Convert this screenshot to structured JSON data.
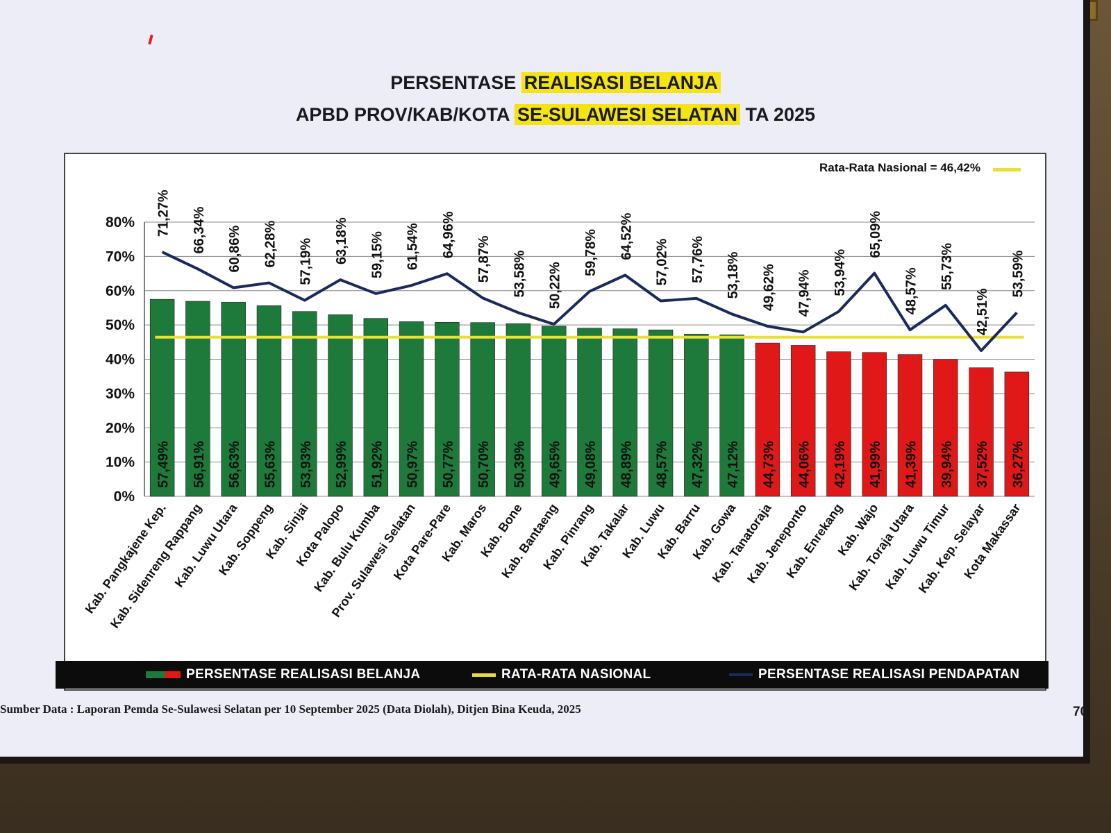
{
  "title": {
    "line1_plain": "PERSENTASE",
    "line1_highlight": "REALISASI BELANJA",
    "line2_plain": "APBD PROV/KAB/KOTA",
    "line2_highlight": "SE-SULAWESI SELATAN",
    "line2_tail": "TA 2025"
  },
  "average_label": "Rata-Rata Nasional = 46,42%",
  "legend": {
    "belanja": "PERSENTASE REALISASI BELANJA",
    "nasional": "RATA-RATA NASIONAL",
    "pendapatan": "PERSENTASE REALISASI PENDAPATAN"
  },
  "source": "Sumber Data : Laporan Pemda Se-Sulawesi Selatan per 10 September 2025 (Data Diolah), Ditjen Bina Keuda, 2025",
  "page_number": "70",
  "colors": {
    "bar_above": "#1e7a3a",
    "bar_below": "#e01818",
    "national_line": "#e8e036",
    "pendapatan_line": "#1a2a5c"
  },
  "chart_data": {
    "type": "bar",
    "categories": [
      "Kab. Pangkajene Kep.",
      "Kab. Sidenreng Rappang",
      "Kab. Luwu Utara",
      "Kab. Soppeng",
      "Kab. Sinjai",
      "Kota Palopo",
      "Kab. Bulu Kumba",
      "Prov. Sulawesi Selatan",
      "Kota Pare-Pare",
      "Kab. Maros",
      "Kab. Bone",
      "Kab. Bantaeng",
      "Kab. Pinrang",
      "Kab. Takalar",
      "Kab. Luwu",
      "Kab. Barru",
      "Kab. Gowa",
      "Kab. Tanatoraja",
      "Kab. Jeneponto",
      "Kab. Enrekang",
      "Kab. Wajo",
      "Kab. Toraja Utara",
      "Kab. Luwu Timur",
      "Kab. Kep. Selayar",
      "Kota Makassar"
    ],
    "series": [
      {
        "name": "PERSENTASE REALISASI BELANJA",
        "type": "bar",
        "values": [
          57.49,
          56.91,
          56.63,
          55.63,
          53.93,
          52.99,
          51.92,
          50.97,
          50.77,
          50.7,
          50.39,
          49.65,
          49.08,
          48.89,
          48.57,
          47.32,
          47.12,
          44.73,
          44.06,
          42.19,
          41.99,
          41.39,
          39.94,
          37.52,
          36.27
        ],
        "labels": [
          "57,49%",
          "56,91%",
          "56,63%",
          "55,63%",
          "53,93%",
          "52,99%",
          "51,92%",
          "50,97%",
          "50,77%",
          "50,70%",
          "50,39%",
          "49,65%",
          "49,08%",
          "48,89%",
          "48,57%",
          "47,32%",
          "47,12%",
          "44,73%",
          "44,06%",
          "42,19%",
          "41,99%",
          "41,39%",
          "39,94%",
          "37,52%",
          "36,27%"
        ]
      },
      {
        "name": "PERSENTASE REALISASI PENDAPATAN",
        "type": "line",
        "values": [
          71.27,
          66.34,
          60.86,
          62.28,
          57.19,
          63.18,
          59.15,
          61.54,
          64.96,
          57.87,
          53.58,
          50.22,
          59.78,
          64.52,
          57.02,
          57.76,
          53.18,
          49.62,
          47.94,
          53.94,
          65.09,
          48.57,
          55.73,
          42.51,
          53.59
        ],
        "labels": [
          "71,27%",
          "66,34%",
          "60,86%",
          "62,28%",
          "57,19%",
          "63,18%",
          "59,15%",
          "61,54%",
          "64,96%",
          "57,87%",
          "53,58%",
          "50,22%",
          "59,78%",
          "64,52%",
          "57,02%",
          "57,76%",
          "53,18%",
          "49,62%",
          "47,94%",
          "53,94%",
          "65,09%",
          "48,57%",
          "55,73%",
          "42,51%",
          "53,59%"
        ]
      },
      {
        "name": "RATA-RATA NASIONAL",
        "type": "reference",
        "value": 46.42
      }
    ],
    "ylim": [
      0,
      80
    ],
    "yticks": [
      "0%",
      "10%",
      "20%",
      "30%",
      "40%",
      "50%",
      "60%",
      "70%",
      "80%"
    ],
    "xlabel": "",
    "ylabel": "",
    "grid": true,
    "legend": "bottom"
  }
}
